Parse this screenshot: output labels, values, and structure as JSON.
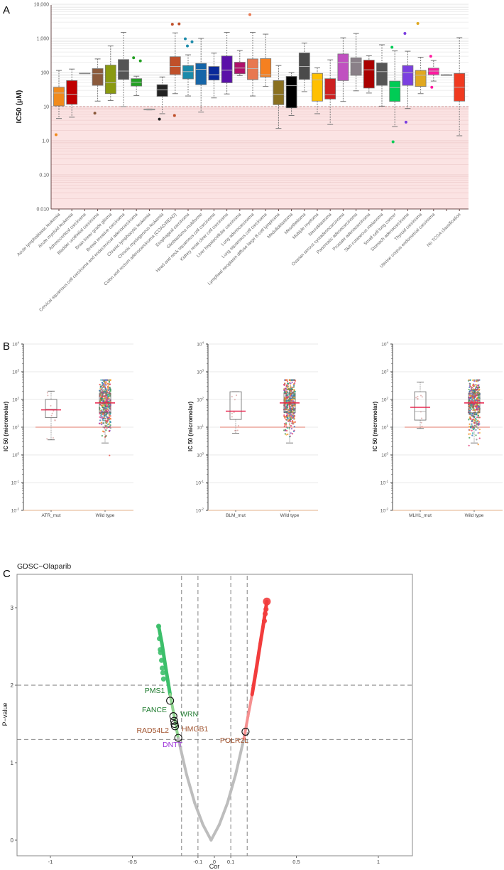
{
  "panels": {
    "a": "A",
    "b": "B",
    "c": "C"
  },
  "chart_data": [
    {
      "type": "box",
      "panel": "A",
      "ylabel": "IC50 (µM)",
      "yscale": "log",
      "ylim": [
        0.01,
        10000
      ],
      "yticks": {
        "values": [
          10000,
          1000,
          100,
          10,
          1,
          0.1,
          0.01
        ],
        "labels": [
          "10,000",
          "1,000",
          "100",
          "10",
          "1.0",
          "0.10",
          "0.010"
        ]
      },
      "threshold": 10,
      "threshold_shade_color": "#fbe3e3",
      "categories": [
        "Acute lymphoblastic leukemia",
        "Acute myeloid leukemia",
        "Adrenocortical carcinoma",
        "Bladder urothelial carcinoma",
        "Brain lower grade glioma",
        "Breast invasive carcinoma",
        "Cervical squamous cell carcinoma and endocervical adenocarcinoma",
        "Chronic lymphocytic leukemia",
        "Chronic myelogenous leukemia",
        "Colon and rectum adenocarcinoma (COAD/READ)",
        "Esophageal carcinoma",
        "Glioblastoma multiforme",
        "Head and neck squamous cell carcinoma",
        "Kidney renal clear cell carcinoma",
        "Liver hepatocellular carcinoma",
        "Lung adenocarcinoma",
        "Lung squamous cell carcinoma",
        "Lymphoid neoplasm diffuse large B-cell lymphoma",
        "Medulloblastoma",
        "Mesothelioma",
        "Multiple myeloma",
        "Neuroblastoma",
        "Ovarian serous cystadenocarcinoma",
        "Pancreatic adenocarcinoma",
        "Prostate adenocarcinoma",
        "Skin cutaneous melanoma",
        "Small cell lung cancer",
        "Stomach adenocarcinoma",
        "Thyroid carcinoma",
        "Uterine corpus endometrial carcinoma",
        "",
        "No TCGA classification"
      ],
      "boxes": [
        {
          "low": 4.5,
          "q1": 10.5,
          "median": 25,
          "q3": 37,
          "high": 115,
          "outliers": [
            1.5
          ],
          "color": "#f08a1c"
        },
        {
          "low": 4.9,
          "q1": 11.7,
          "median": 23,
          "q3": 58,
          "high": 126,
          "outliers": [],
          "color": "#c00000"
        },
        {
          "low": 97,
          "q1": 97,
          "median": 97,
          "q3": 97,
          "high": 97,
          "outliers": [],
          "color": "#999999"
        },
        {
          "low": 14.5,
          "q1": 42,
          "median": 92,
          "q3": 130,
          "high": 250,
          "outliers": [
            6.4
          ],
          "color": "#8b5a3c"
        },
        {
          "low": 15,
          "q1": 24,
          "median": 50,
          "q3": 165,
          "high": 600,
          "outliers": [],
          "color": "#8a9a10"
        },
        {
          "low": 10,
          "q1": 63,
          "median": 110,
          "q3": 240,
          "high": 1500,
          "outliers": [],
          "color": "#555555"
        },
        {
          "low": 21,
          "q1": 40,
          "median": 52,
          "q3": 66,
          "high": 78,
          "outliers": [
            270,
            220
          ],
          "color": "#22a022"
        },
        {
          "low": 8,
          "q1": 8,
          "median": 8.2,
          "q3": 8.5,
          "high": 8.5,
          "outliers": [],
          "color": "#999999"
        },
        {
          "low": 6.2,
          "q1": 20,
          "median": 31,
          "q3": 44,
          "high": 74,
          "outliers": [
            4.3
          ],
          "color": "#222222"
        },
        {
          "low": 24,
          "q1": 87,
          "median": 150,
          "q3": 290,
          "high": 1450,
          "outliers": [
            2600,
            2650,
            5.5
          ],
          "color": "#c0502a"
        },
        {
          "low": 20.5,
          "q1": 65,
          "median": 106,
          "q3": 160,
          "high": 330,
          "outliers": [
            970,
            790,
            600
          ],
          "color": "#1a8aaa"
        },
        {
          "low": 6.9,
          "q1": 44,
          "median": 124,
          "q3": 185,
          "high": 1000,
          "outliers": [],
          "color": "#1565a8"
        },
        {
          "low": 18,
          "q1": 60,
          "median": 86,
          "q3": 150,
          "high": 370,
          "outliers": [],
          "color": "#0a2a9a"
        },
        {
          "low": 23.5,
          "q1": 50,
          "median": 117,
          "q3": 305,
          "high": 1500,
          "outliers": [],
          "color": "#5a10a8"
        },
        {
          "low": 81,
          "q1": 92,
          "median": 135,
          "q3": 200,
          "high": 440,
          "outliers": [],
          "color": "#b0106a"
        },
        {
          "low": 20.5,
          "q1": 62,
          "median": 130,
          "q3": 250,
          "high": 1500,
          "outliers": [
            5000
          ],
          "color": "#e87850"
        },
        {
          "low": 39,
          "q1": 74,
          "median": 86,
          "q3": 255,
          "high": 1330,
          "outliers": [],
          "color": "#f58020"
        },
        {
          "low": 2.3,
          "q1": 11.4,
          "median": 23,
          "q3": 58,
          "high": 160,
          "outliers": [],
          "color": "#8a7020"
        },
        {
          "low": 5.5,
          "q1": 9.2,
          "median": 41,
          "q3": 77,
          "high": 99,
          "outliers": [],
          "color": "#000000"
        },
        {
          "low": 27.5,
          "q1": 63,
          "median": 150,
          "q3": 375,
          "high": 730,
          "outliers": [],
          "color": "#4a4a4a"
        },
        {
          "low": 6.2,
          "q1": 14.5,
          "median": 61,
          "q3": 94,
          "high": 137,
          "outliers": [],
          "color": "#ffc000"
        },
        {
          "low": 3,
          "q1": 16.7,
          "median": 22.3,
          "q3": 66,
          "high": 235,
          "outliers": [],
          "color": "#cc2020"
        },
        {
          "low": 14.2,
          "q1": 58,
          "median": 200,
          "q3": 350,
          "high": 1040,
          "outliers": [],
          "color": "#c050c0"
        },
        {
          "low": 29,
          "q1": 83,
          "median": 200,
          "q3": 270,
          "high": 1390,
          "outliers": [],
          "color": "#8a8088"
        },
        {
          "low": 25,
          "q1": 35,
          "median": 120,
          "q3": 230,
          "high": 310,
          "outliers": [],
          "color": "#aa0000"
        },
        {
          "low": 10.3,
          "q1": 42,
          "median": 106,
          "q3": 190,
          "high": 650,
          "outliers": [],
          "color": "#555555"
        },
        {
          "low": 2.6,
          "q1": 14.2,
          "median": 36,
          "q3": 56,
          "high": 430,
          "outliers": [
            550,
            0.93
          ],
          "color": "#00cc55"
        },
        {
          "low": 8.8,
          "q1": 42,
          "median": 98,
          "q3": 160,
          "high": 420,
          "outliers": [
            1400,
            3.5
          ],
          "color": "#7b3fe0"
        },
        {
          "low": 24,
          "q1": 39,
          "median": 83,
          "q3": 115,
          "high": 280,
          "outliers": [
            2740
          ],
          "color": "#e0a820"
        },
        {
          "low": 56,
          "q1": 86,
          "median": 110,
          "q3": 134,
          "high": 225,
          "outliers": [
            300,
            37
          ],
          "color": "#ff1aa0"
        },
        {
          "low": 87,
          "q1": 87,
          "median": 87,
          "q3": 87,
          "high": 87,
          "outliers": [],
          "color": "#999999"
        },
        {
          "low": 1.4,
          "q1": 14.5,
          "median": 37,
          "q3": 94,
          "high": 1050,
          "outliers": [],
          "color": "#f03a20"
        }
      ]
    },
    {
      "type": "box",
      "panel": "B",
      "ylabel": "IC 50 (micromolar)",
      "yscale": "log",
      "ylim": [
        0.01,
        10000
      ],
      "yticks": {
        "base": "10",
        "exponents": [
          "4",
          "3",
          "2",
          "1",
          "0",
          "-1",
          "-2"
        ]
      },
      "threshold": 10,
      "categories": [
        "ATR_mut",
        "Wild type"
      ],
      "boxes": [
        {
          "low": 3.5,
          "q1": 22,
          "median": 45,
          "q3": 100,
          "high": 200,
          "mean": 42
        },
        {
          "low": 2.7,
          "q1": 33,
          "median": 75,
          "q3": 170,
          "high": 220,
          "mean": 75
        }
      ]
    },
    {
      "type": "box",
      "panel": "B",
      "ylabel": "IC 50 (micromolar)",
      "yscale": "log",
      "ylim": [
        0.01,
        10000
      ],
      "yticks": {
        "base": "10",
        "exponents": [
          "4",
          "3",
          "2",
          "1",
          "0",
          "-1",
          "-2"
        ]
      },
      "threshold": 10,
      "categories": [
        "BLM_mut",
        "Wild type"
      ],
      "boxes": [
        {
          "low": 6,
          "q1": 19,
          "median": 38,
          "q3": 190,
          "high": 190,
          "mean": 38
        },
        {
          "low": 2.7,
          "q1": 33,
          "median": 75,
          "q3": 170,
          "high": 220,
          "mean": 75
        }
      ]
    },
    {
      "type": "box",
      "panel": "B",
      "ylabel": "IC 50 (micromolar)",
      "yscale": "log",
      "ylim": [
        0.01,
        10000
      ],
      "yticks": {
        "base": "10",
        "exponents": [
          "4",
          "3",
          "2",
          "1",
          "0",
          "-1",
          "-2"
        ]
      },
      "threshold": 10,
      "categories": [
        "MLH1_mut",
        "Wild type"
      ],
      "boxes": [
        {
          "low": 9,
          "q1": 18,
          "median": 37,
          "q3": 190,
          "high": 420,
          "mean": 52
        },
        {
          "low": 2.7,
          "q1": 33,
          "median": 75,
          "q3": 170,
          "high": 220,
          "mean": 75
        }
      ]
    },
    {
      "type": "scatter",
      "panel": "C",
      "title": "GDSC−Olaparib",
      "xlabel": "Cor",
      "ylabel": "P−value",
      "xlim": [
        -1.2,
        1.2
      ],
      "ylim": [
        -0.2,
        3.3
      ],
      "xticks": {
        "values": [
          -1,
          -0.5,
          -0.1,
          0,
          0.1,
          0.5,
          1
        ],
        "labels": [
          "-1",
          "-0.5",
          "-0.1",
          "0",
          "0.1",
          "0.5",
          "1"
        ]
      },
      "yticks": {
        "values": [
          0,
          1,
          2,
          3
        ],
        "labels": [
          "0",
          "1",
          "2",
          "3"
        ]
      },
      "cor_thresholds": [
        -0.2,
        -0.1,
        0.1,
        0.2
      ],
      "p_thresholds": [
        1.3,
        2
      ],
      "colors": {
        "ns": "#bdbdbd",
        "neg_weak": "#8fd48f",
        "neg_strong": "#3cbf6a",
        "pos_weak": "#f59090",
        "pos_strong": "#f23c3c"
      },
      "curve": [
        {
          "cor": -0.34,
          "p": 2.76
        },
        {
          "cor": -0.32,
          "p": 2.54
        },
        {
          "cor": -0.295,
          "p": 2.2
        },
        {
          "cor": -0.27,
          "p": 1.88
        },
        {
          "cor": -0.245,
          "p": 1.6
        },
        {
          "cor": -0.22,
          "p": 1.31
        },
        {
          "cor": -0.17,
          "p": 0.85
        },
        {
          "cor": -0.12,
          "p": 0.48
        },
        {
          "cor": -0.07,
          "p": 0.2
        },
        {
          "cor": -0.02,
          "p": 0
        },
        {
          "cor": 0.03,
          "p": 0.2
        },
        {
          "cor": 0.08,
          "p": 0.48
        },
        {
          "cor": 0.13,
          "p": 0.85
        },
        {
          "cor": 0.18,
          "p": 1.31
        },
        {
          "cor": 0.205,
          "p": 1.6
        },
        {
          "cor": 0.23,
          "p": 1.88
        },
        {
          "cor": 0.255,
          "p": 2.2
        },
        {
          "cor": 0.28,
          "p": 2.54
        },
        {
          "cor": 0.3,
          "p": 2.8
        },
        {
          "cor": 0.32,
          "p": 3.08
        }
      ],
      "highlight_points": [
        {
          "cor": -0.34,
          "p": 2.76
        },
        {
          "cor": -0.335,
          "p": 2.6
        },
        {
          "cor": -0.33,
          "p": 2.46
        },
        {
          "cor": -0.328,
          "p": 2.42
        },
        {
          "cor": -0.322,
          "p": 2.32
        },
        {
          "cor": -0.318,
          "p": 2.22
        },
        {
          "cor": -0.314,
          "p": 2.16
        },
        {
          "cor": -0.31,
          "p": 2.08
        },
        {
          "cor": 0.32,
          "p": 3.08
        },
        {
          "cor": 0.315,
          "p": 2.98
        },
        {
          "cor": 0.31,
          "p": 2.92
        },
        {
          "cor": 0.305,
          "p": 2.83
        }
      ],
      "genes": [
        {
          "name": "PMS1",
          "cor": -0.27,
          "p": 1.8,
          "color": "#1e7b2e"
        },
        {
          "name": "FANCE",
          "cor": -0.25,
          "p": 1.6,
          "color": "#1e7b2e"
        },
        {
          "name": "WRN",
          "cor": -0.245,
          "p": 1.54,
          "color": "#1e7b2e"
        },
        {
          "name": "RAD54L2",
          "cor": -0.243,
          "p": 1.5,
          "color": "#a0522d"
        },
        {
          "name": "HMGB1",
          "cor": -0.24,
          "p": 1.47,
          "color": "#a0522d"
        },
        {
          "name": "DNTT",
          "cor": -0.22,
          "p": 1.32,
          "color": "#9b30d9"
        },
        {
          "name": "POLR2L",
          "cor": 0.19,
          "p": 1.4,
          "color": "#a0522d"
        }
      ]
    }
  ]
}
